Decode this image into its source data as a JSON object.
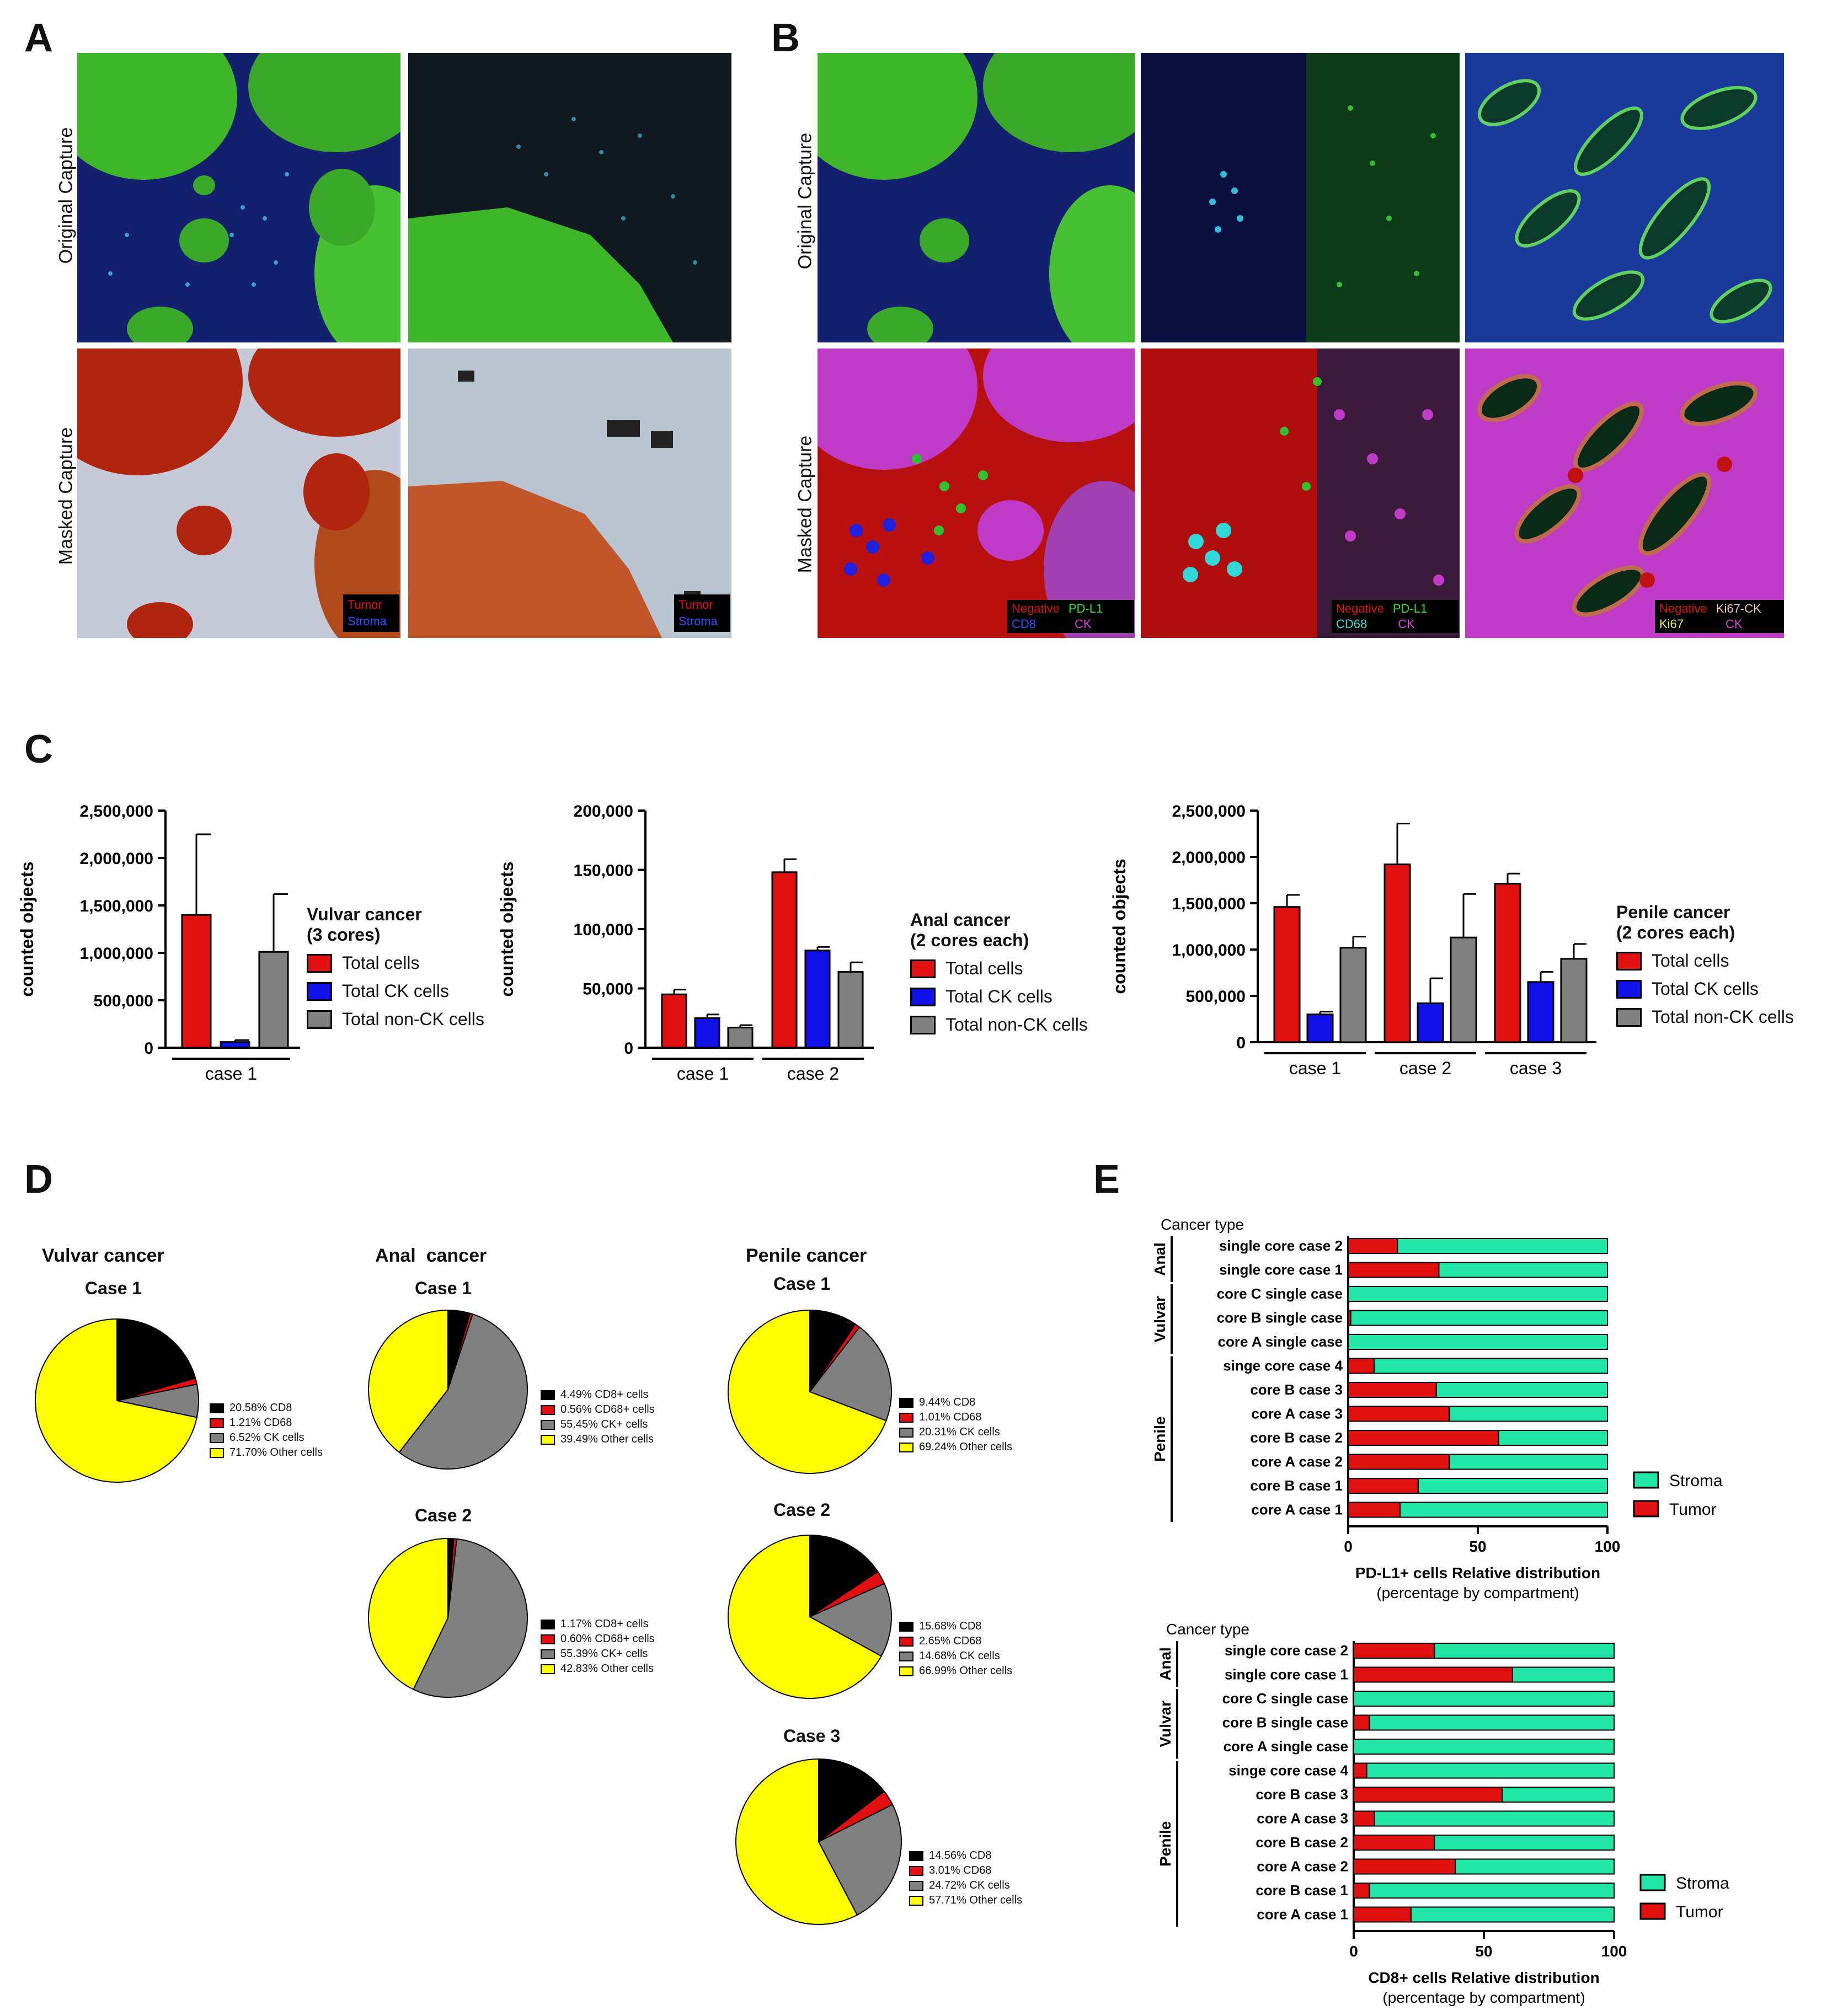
{
  "colors": {
    "red": "#e01010",
    "blue": "#1010e8",
    "gray": "#808080",
    "black": "#000000",
    "yellow": "#ffff00",
    "stroma": "#22e6a6",
    "tumor": "#e01010",
    "tissue_green": "#3fb52a",
    "nuclei_blue": "#1a2a8a",
    "mask_red": "#b80f0f",
    "mask_magenta": "#c03ac8"
  },
  "panel_letters": [
    "A",
    "B",
    "C",
    "D",
    "E"
  ],
  "panel_a": {
    "row_labels": [
      "Original Capture",
      "Masked Capture"
    ],
    "mask_legends": [
      [
        "Tumor",
        "Stroma"
      ],
      [
        "Tumor",
        "Stroma"
      ]
    ]
  },
  "panel_b": {
    "row_labels": [
      "Original Capture",
      "Masked Capture"
    ],
    "mask_legends": [
      [
        "Negative",
        "PD-L1",
        "CD8",
        "CK"
      ],
      [
        "Negative",
        "PD-L1",
        "CD68",
        "CK"
      ],
      [
        "Negative",
        "Ki67-CK",
        "Ki67",
        "CK"
      ]
    ]
  },
  "panel_c": {
    "ylabel": "counted objects",
    "series_names": [
      "Total cells",
      "Total CK cells",
      "Total non-CK cells"
    ],
    "charts": [
      {
        "legend_title": [
          "Vulvar cancer",
          "(3 cores)"
        ],
        "ticks": [
          "0",
          "500,000",
          "1,000,000",
          "1,500,000",
          "2,000,000",
          "2,500,000"
        ],
        "groups": [
          "case 1"
        ]
      },
      {
        "legend_title": [
          "Anal cancer",
          "(2 cores each)"
        ],
        "ticks": [
          "0",
          "50,000",
          "100,000",
          "150,000",
          "200,000"
        ],
        "groups": [
          "case 1",
          "case 2"
        ]
      },
      {
        "legend_title": [
          "Penile cancer",
          "(2 cores each)"
        ],
        "ticks": [
          "0",
          "500,000",
          "1,000,000",
          "1,500,000",
          "2,000,000",
          "2,500,000"
        ],
        "groups": [
          "case 1",
          "case 2",
          "case 3"
        ]
      }
    ]
  },
  "panel_d": {
    "titles": [
      "Vulvar cancer",
      "Anal  cancer",
      "Penile cancer"
    ],
    "case_labels": [
      "Case 1",
      "Case 1",
      "Case 2",
      "Case 1",
      "Case 2",
      "Case 3"
    ],
    "legends": [
      [
        "20.58%  CD8",
        "1.21%  CD68",
        "6.52%  CK cells",
        "71.70%  Other cells"
      ],
      [
        "4.49%  CD8+ cells",
        "0.56%  CD68+ cells",
        "55.45%  CK+ cells",
        "39.49%  Other cells"
      ],
      [
        "1.17%  CD8+ cells",
        "0.60%  CD68+ cells",
        "55.39%  CK+ cells",
        "42.83%  Other cells"
      ],
      [
        "9.44%  CD8",
        "1.01%  CD68",
        "20.31%  CK cells",
        "69.24%  Other cells"
      ],
      [
        "15.68%  CD8",
        "2.65%  CD68",
        "14.68%  CK cells",
        "66.99%  Other cells"
      ],
      [
        "14.56%  CD8",
        "3.01%  CD68",
        "24.72%  CK cells",
        "57.71%  Other cells"
      ]
    ]
  },
  "panel_e": {
    "cancer_type_label": "Cancer type",
    "group_labels": [
      "Anal",
      "Vulvar",
      "Penile"
    ],
    "row_labels": [
      "single core case 2",
      "single core case 1",
      "core C single case",
      "core B single case",
      "core A single case",
      "singe core case 4",
      "core B case 3",
      "core A case 3",
      "core B case 2",
      "core A case 2",
      "core B case 1",
      "core A case 1"
    ],
    "ticks": [
      "0",
      "50",
      "100"
    ],
    "legend": [
      "Stroma",
      "Tumor"
    ],
    "charts": [
      {
        "xlabel": "PD-L1+ cells Relative distribution",
        "xsub": "(percentage by compartment)"
      },
      {
        "xlabel": "CD8+ cells Relative distribution",
        "xsub": "(percentage by compartment)"
      }
    ]
  },
  "chart_data": [
    {
      "type": "bar",
      "title": "Vulvar cancer (3 cores)",
      "ylabel": "counted objects",
      "ylim": [
        0,
        2500000
      ],
      "categories": [
        "case 1"
      ],
      "series": [
        {
          "name": "Total cells",
          "values": [
            1400000
          ],
          "error": [
            850000
          ]
        },
        {
          "name": "Total CK cells",
          "values": [
            60000
          ],
          "error": [
            20000
          ]
        },
        {
          "name": "Total non-CK cells",
          "values": [
            1010000
          ],
          "error": [
            610000
          ]
        }
      ]
    },
    {
      "type": "bar",
      "title": "Anal cancer (2 cores each)",
      "ylabel": "counted objects",
      "ylim": [
        0,
        200000
      ],
      "categories": [
        "case 1",
        "case 2"
      ],
      "series": [
        {
          "name": "Total cells",
          "values": [
            45000,
            148000
          ],
          "error": [
            4000,
            11000
          ]
        },
        {
          "name": "Total CK cells",
          "values": [
            25000,
            82000
          ],
          "error": [
            3000,
            3000
          ]
        },
        {
          "name": "Total non-CK cells",
          "values": [
            17000,
            64000
          ],
          "error": [
            2000,
            8000
          ]
        }
      ]
    },
    {
      "type": "bar",
      "title": "Penile cancer (2 cores each)",
      "ylabel": "counted objects",
      "ylim": [
        0,
        2500000
      ],
      "categories": [
        "case 1",
        "case 2",
        "case 3"
      ],
      "series": [
        {
          "name": "Total cells",
          "values": [
            1460000,
            1920000,
            1710000
          ],
          "error": [
            130000,
            440000,
            110000
          ]
        },
        {
          "name": "Total CK cells",
          "values": [
            300000,
            420000,
            650000
          ],
          "error": [
            30000,
            270000,
            110000
          ]
        },
        {
          "name": "Total non-CK cells",
          "values": [
            1020000,
            1130000,
            900000
          ],
          "error": [
            120000,
            470000,
            160000
          ]
        }
      ]
    },
    {
      "type": "pie",
      "title": "Vulvar cancer Case 1",
      "categories": [
        "CD8",
        "CD68",
        "CK cells",
        "Other cells"
      ],
      "values": [
        20.58,
        1.21,
        6.52,
        71.7
      ]
    },
    {
      "type": "pie",
      "title": "Anal cancer Case 1",
      "categories": [
        "CD8+ cells",
        "CD68+ cells",
        "CK+ cells",
        "Other cells"
      ],
      "values": [
        4.49,
        0.56,
        55.45,
        39.49
      ]
    },
    {
      "type": "pie",
      "title": "Anal cancer Case 2",
      "categories": [
        "CD8+ cells",
        "CD68+ cells",
        "CK+ cells",
        "Other cells"
      ],
      "values": [
        1.17,
        0.6,
        55.39,
        42.83
      ]
    },
    {
      "type": "pie",
      "title": "Penile cancer Case 1",
      "categories": [
        "CD8",
        "CD68",
        "CK cells",
        "Other cells"
      ],
      "values": [
        9.44,
        1.01,
        20.31,
        69.24
      ]
    },
    {
      "type": "pie",
      "title": "Penile cancer Case 2",
      "categories": [
        "CD8",
        "CD68",
        "CK cells",
        "Other cells"
      ],
      "values": [
        15.68,
        2.65,
        14.68,
        66.99
      ]
    },
    {
      "type": "pie",
      "title": "Penile cancer Case 3",
      "categories": [
        "CD8",
        "CD68",
        "CK cells",
        "Other cells"
      ],
      "values": [
        14.56,
        3.01,
        24.72,
        57.71
      ]
    },
    {
      "type": "bar",
      "title": "PD-L1+ cells Relative distribution",
      "xlabel": "PD-L1+ cells Relative distribution (percentage by compartment)",
      "categories": [
        "single core case 2",
        "single core case 1",
        "core C single case",
        "core B single case",
        "core A single case",
        "singe core case 4",
        "core B case 3",
        "core A case 3",
        "core B case 2",
        "core A case 2",
        "core B case 1",
        "core A case 1"
      ],
      "xlim": [
        0,
        100
      ],
      "series": [
        {
          "name": "Tumor",
          "values": [
            19,
            35,
            0,
            1,
            0,
            10,
            34,
            39,
            58,
            39,
            27,
            20
          ]
        },
        {
          "name": "Stroma",
          "values": [
            81,
            65,
            100,
            99,
            100,
            90,
            66,
            61,
            42,
            61,
            73,
            80
          ]
        }
      ]
    },
    {
      "type": "bar",
      "title": "CD8+ cells Relative distribution",
      "xlabel": "CD8+ cells Relative distribution (percentage by compartment)",
      "categories": [
        "single core case 2",
        "single core case 1",
        "core C single case",
        "core B single case",
        "core A single case",
        "singe core case 4",
        "core B case 3",
        "core A case 3",
        "core B case 2",
        "core A case 2",
        "core B case 1",
        "core A case 1"
      ],
      "xlim": [
        0,
        100
      ],
      "series": [
        {
          "name": "Tumor",
          "values": [
            31,
            61,
            0,
            6,
            0,
            5,
            57,
            8,
            31,
            39,
            6,
            22
          ]
        },
        {
          "name": "Stroma",
          "values": [
            69,
            39,
            100,
            94,
            100,
            95,
            43,
            92,
            69,
            61,
            94,
            78
          ]
        }
      ]
    }
  ]
}
